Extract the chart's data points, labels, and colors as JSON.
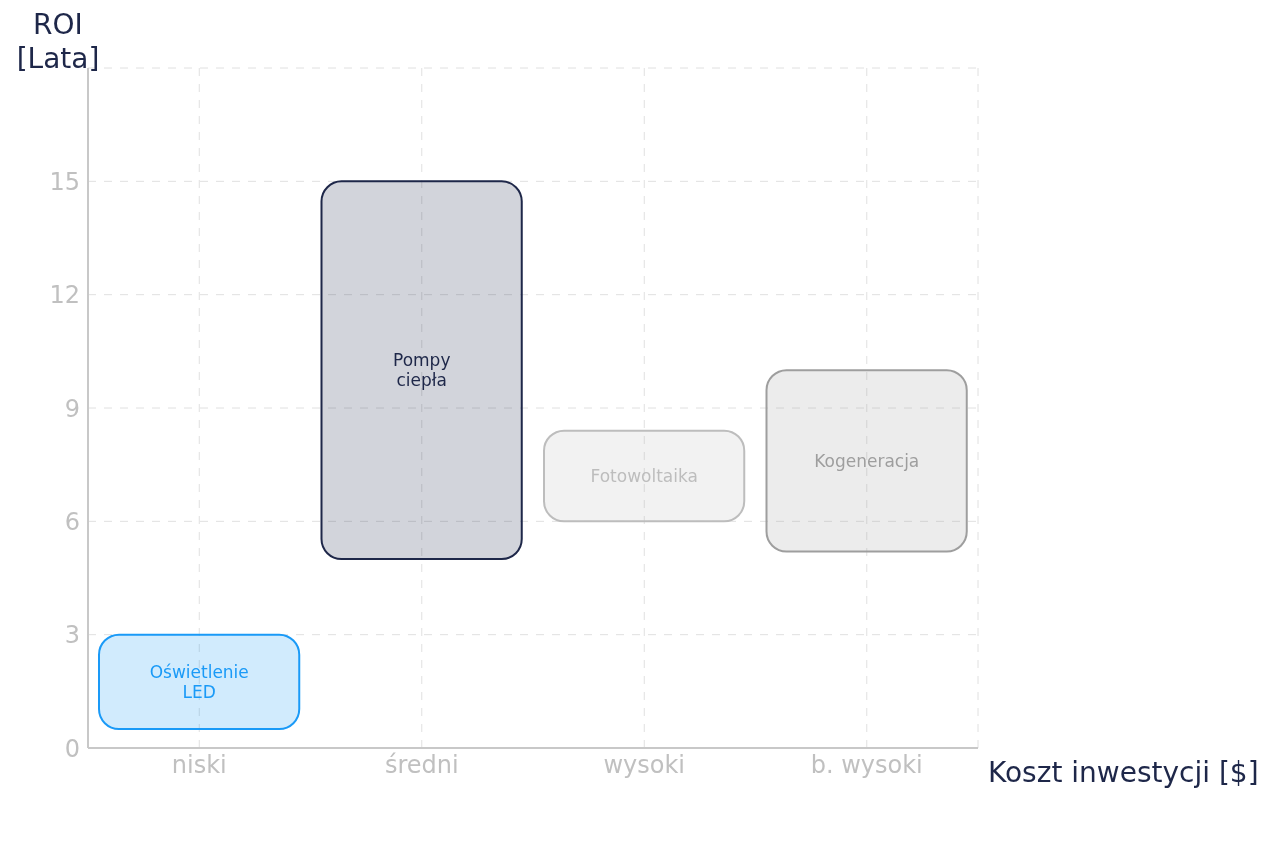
{
  "chart_data": {
    "type": "bar",
    "xlabel": "Koszt inwestycji [$]",
    "ylabel": "ROI [Lata]",
    "categories": [
      "niski",
      "średni",
      "wysoki",
      "b. wysoki"
    ],
    "ylim": [
      0,
      18
    ],
    "yticks": [
      0,
      3,
      6,
      9,
      12,
      15
    ],
    "grid": true,
    "base": [
      0.5,
      5,
      6,
      5.2
    ],
    "values": [
      2.5,
      10,
      2.4,
      4.8
    ],
    "colors": [
      "#1a9af7",
      "#1e2749",
      "#bdbdbd",
      "#9e9e9e"
    ],
    "annotations": [
      "Oświetlenie LED",
      "Pompy ciepła",
      "Fotowoltaika",
      "Kogeneracja"
    ]
  }
}
